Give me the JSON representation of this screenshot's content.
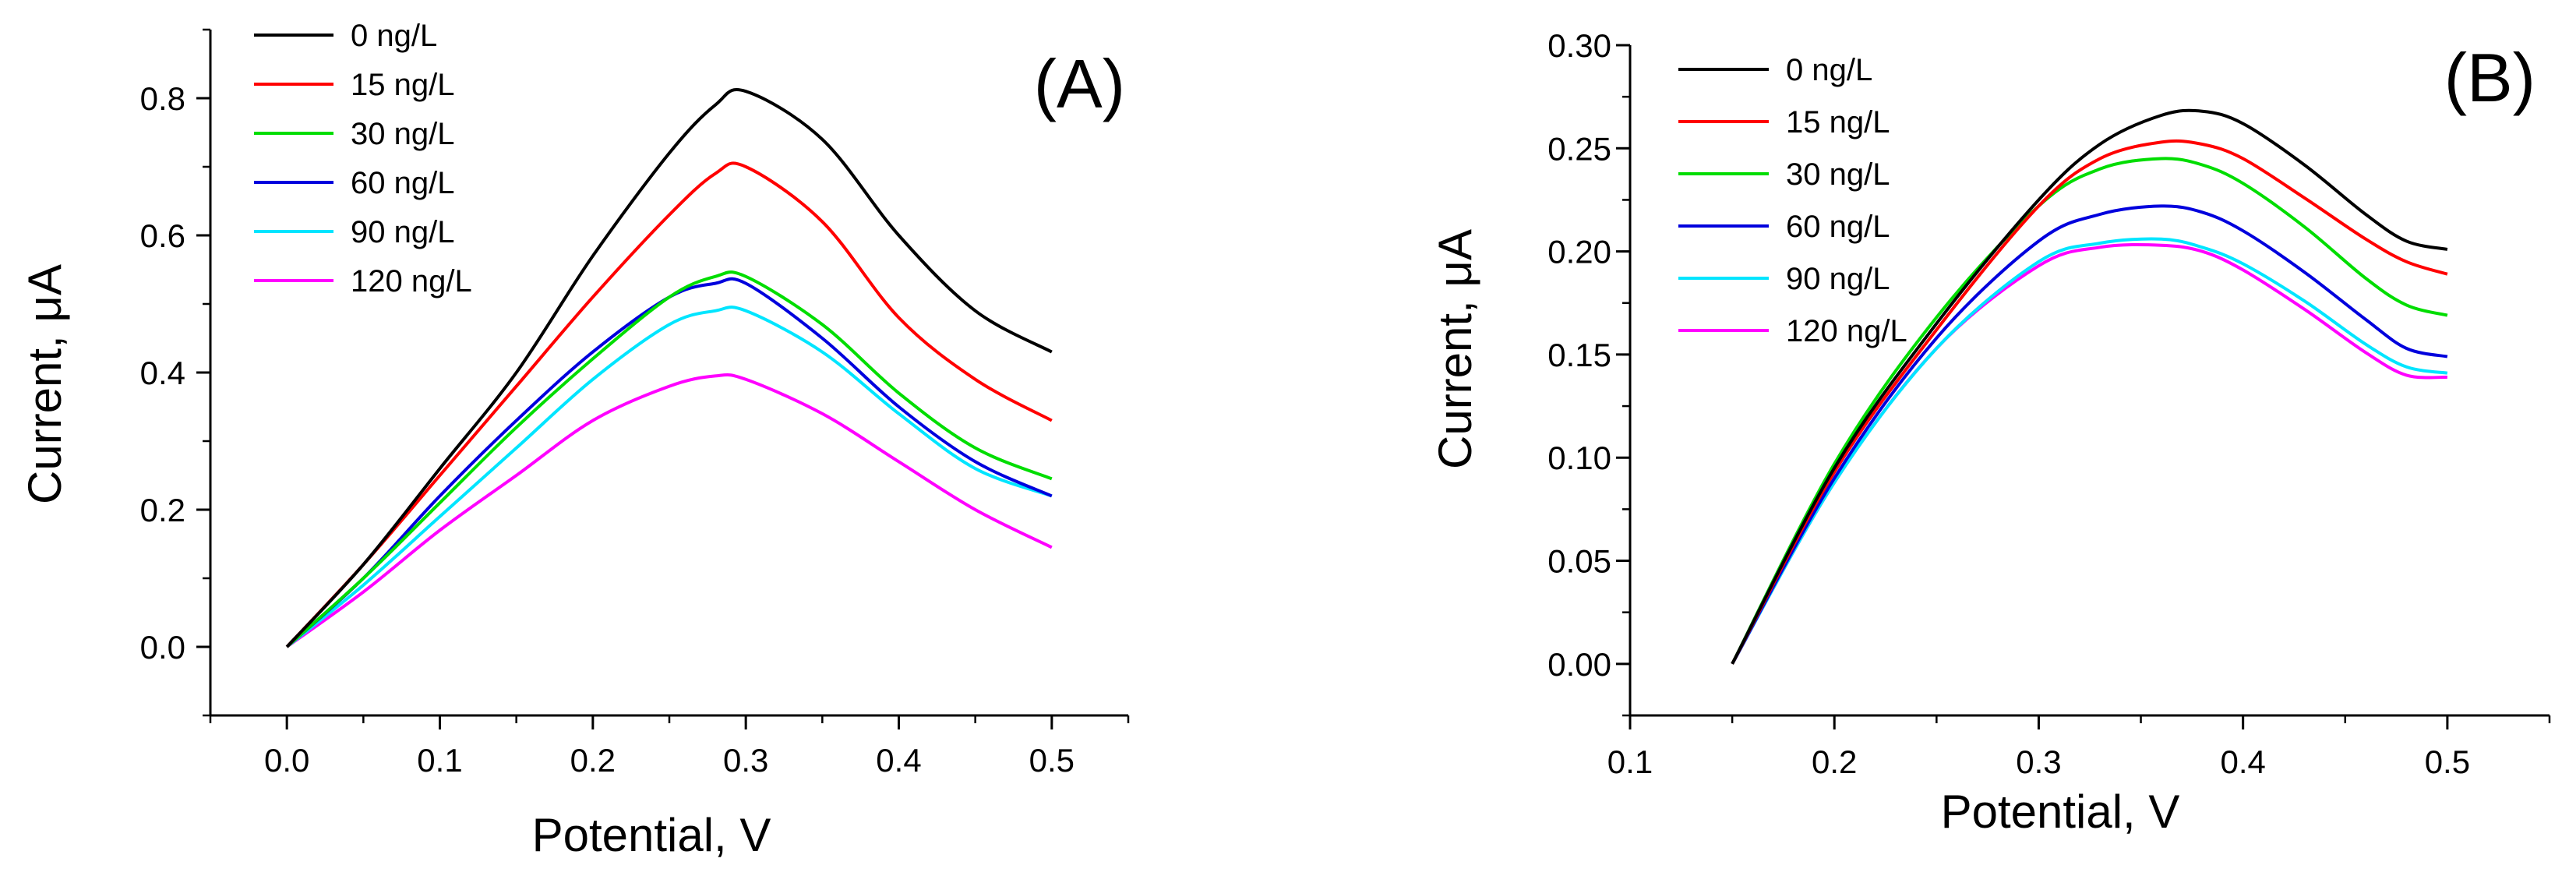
{
  "chart_data": [
    {
      "type": "line",
      "panel_label": "(A)",
      "xlabel": "Potential, V",
      "ylabel": "Current, μA",
      "xlim": [
        -0.05,
        0.55
      ],
      "ylim": [
        -0.1,
        0.9
      ],
      "x_ticks": [
        0.0,
        0.1,
        0.2,
        0.3,
        0.4,
        0.5
      ],
      "x_tick_labels": [
        "0.0",
        "0.1",
        "0.2",
        "0.3",
        "0.4",
        "0.5"
      ],
      "y_ticks": [
        0.0,
        0.2,
        0.4,
        0.6,
        0.8
      ],
      "y_tick_labels": [
        "0.0",
        "0.2",
        "0.4",
        "0.6",
        "0.8"
      ],
      "legend_position": "top-left",
      "x": [
        0.0,
        0.05,
        0.1,
        0.15,
        0.2,
        0.25,
        0.28,
        0.3,
        0.35,
        0.4,
        0.45,
        0.5
      ],
      "series": [
        {
          "name": "0 ng/L",
          "color": "#000000",
          "values": [
            0.0,
            0.12,
            0.26,
            0.4,
            0.57,
            0.72,
            0.79,
            0.81,
            0.74,
            0.6,
            0.49,
            0.43
          ]
        },
        {
          "name": "15 ng/L",
          "color": "#ff0000",
          "values": [
            0.0,
            0.12,
            0.25,
            0.38,
            0.51,
            0.63,
            0.69,
            0.7,
            0.62,
            0.48,
            0.39,
            0.33
          ]
        },
        {
          "name": "30 ng/L",
          "color": "#00dd00",
          "values": [
            0.0,
            0.1,
            0.21,
            0.32,
            0.42,
            0.51,
            0.54,
            0.54,
            0.47,
            0.37,
            0.29,
            0.245
          ]
        },
        {
          "name": "60 ng/L",
          "color": "#0000dd",
          "values": [
            0.0,
            0.1,
            0.22,
            0.33,
            0.43,
            0.51,
            0.53,
            0.53,
            0.45,
            0.35,
            0.27,
            0.22
          ]
        },
        {
          "name": "90 ng/L",
          "color": "#00e5ff",
          "values": [
            0.0,
            0.09,
            0.19,
            0.29,
            0.39,
            0.47,
            0.49,
            0.49,
            0.43,
            0.34,
            0.26,
            0.22
          ]
        },
        {
          "name": "120 ng/L",
          "color": "#ff00ff",
          "values": [
            0.0,
            0.08,
            0.17,
            0.25,
            0.33,
            0.38,
            0.395,
            0.39,
            0.34,
            0.27,
            0.2,
            0.145
          ]
        }
      ]
    },
    {
      "type": "line",
      "panel_label": "(B)",
      "xlabel": "Potential, V",
      "ylabel": "Current, μA",
      "xlim": [
        0.1,
        0.55
      ],
      "ylim": [
        -0.025,
        0.3
      ],
      "x_ticks": [
        0.1,
        0.2,
        0.3,
        0.4,
        0.5
      ],
      "x_tick_labels": [
        "0.1",
        "0.2",
        "0.3",
        "0.4",
        "0.5"
      ],
      "y_ticks": [
        0.0,
        0.05,
        0.1,
        0.15,
        0.2,
        0.25,
        0.3
      ],
      "y_tick_labels": [
        "0.00",
        "0.05",
        "0.10",
        "0.15",
        "0.20",
        "0.25",
        "0.30"
      ],
      "legend_position": "top-left",
      "x": [
        0.15,
        0.2,
        0.25,
        0.3,
        0.33,
        0.36,
        0.38,
        0.4,
        0.43,
        0.46,
        0.48,
        0.5
      ],
      "series": [
        {
          "name": "0 ng/L",
          "color": "#000000",
          "values": [
            0.0,
            0.095,
            0.165,
            0.225,
            0.252,
            0.266,
            0.268,
            0.262,
            0.242,
            0.218,
            0.205,
            0.201
          ]
        },
        {
          "name": "15 ng/L",
          "color": "#ff0000",
          "values": [
            0.0,
            0.093,
            0.162,
            0.222,
            0.245,
            0.253,
            0.252,
            0.245,
            0.226,
            0.206,
            0.195,
            0.189
          ]
        },
        {
          "name": "30 ng/L",
          "color": "#00dd00",
          "values": [
            0.0,
            0.097,
            0.168,
            0.222,
            0.24,
            0.245,
            0.242,
            0.233,
            0.212,
            0.187,
            0.174,
            0.169
          ]
        },
        {
          "name": "60 ng/L",
          "color": "#0000dd",
          "values": [
            0.0,
            0.09,
            0.158,
            0.205,
            0.218,
            0.222,
            0.219,
            0.21,
            0.19,
            0.167,
            0.153,
            0.149
          ]
        },
        {
          "name": "90 ng/L",
          "color": "#00e5ff",
          "values": [
            0.0,
            0.088,
            0.153,
            0.195,
            0.204,
            0.206,
            0.202,
            0.194,
            0.176,
            0.155,
            0.144,
            0.141
          ]
        },
        {
          "name": "120 ng/L",
          "color": "#ff00ff",
          "values": [
            0.0,
            0.088,
            0.153,
            0.193,
            0.202,
            0.203,
            0.2,
            0.191,
            0.172,
            0.151,
            0.14,
            0.139
          ]
        }
      ]
    }
  ]
}
